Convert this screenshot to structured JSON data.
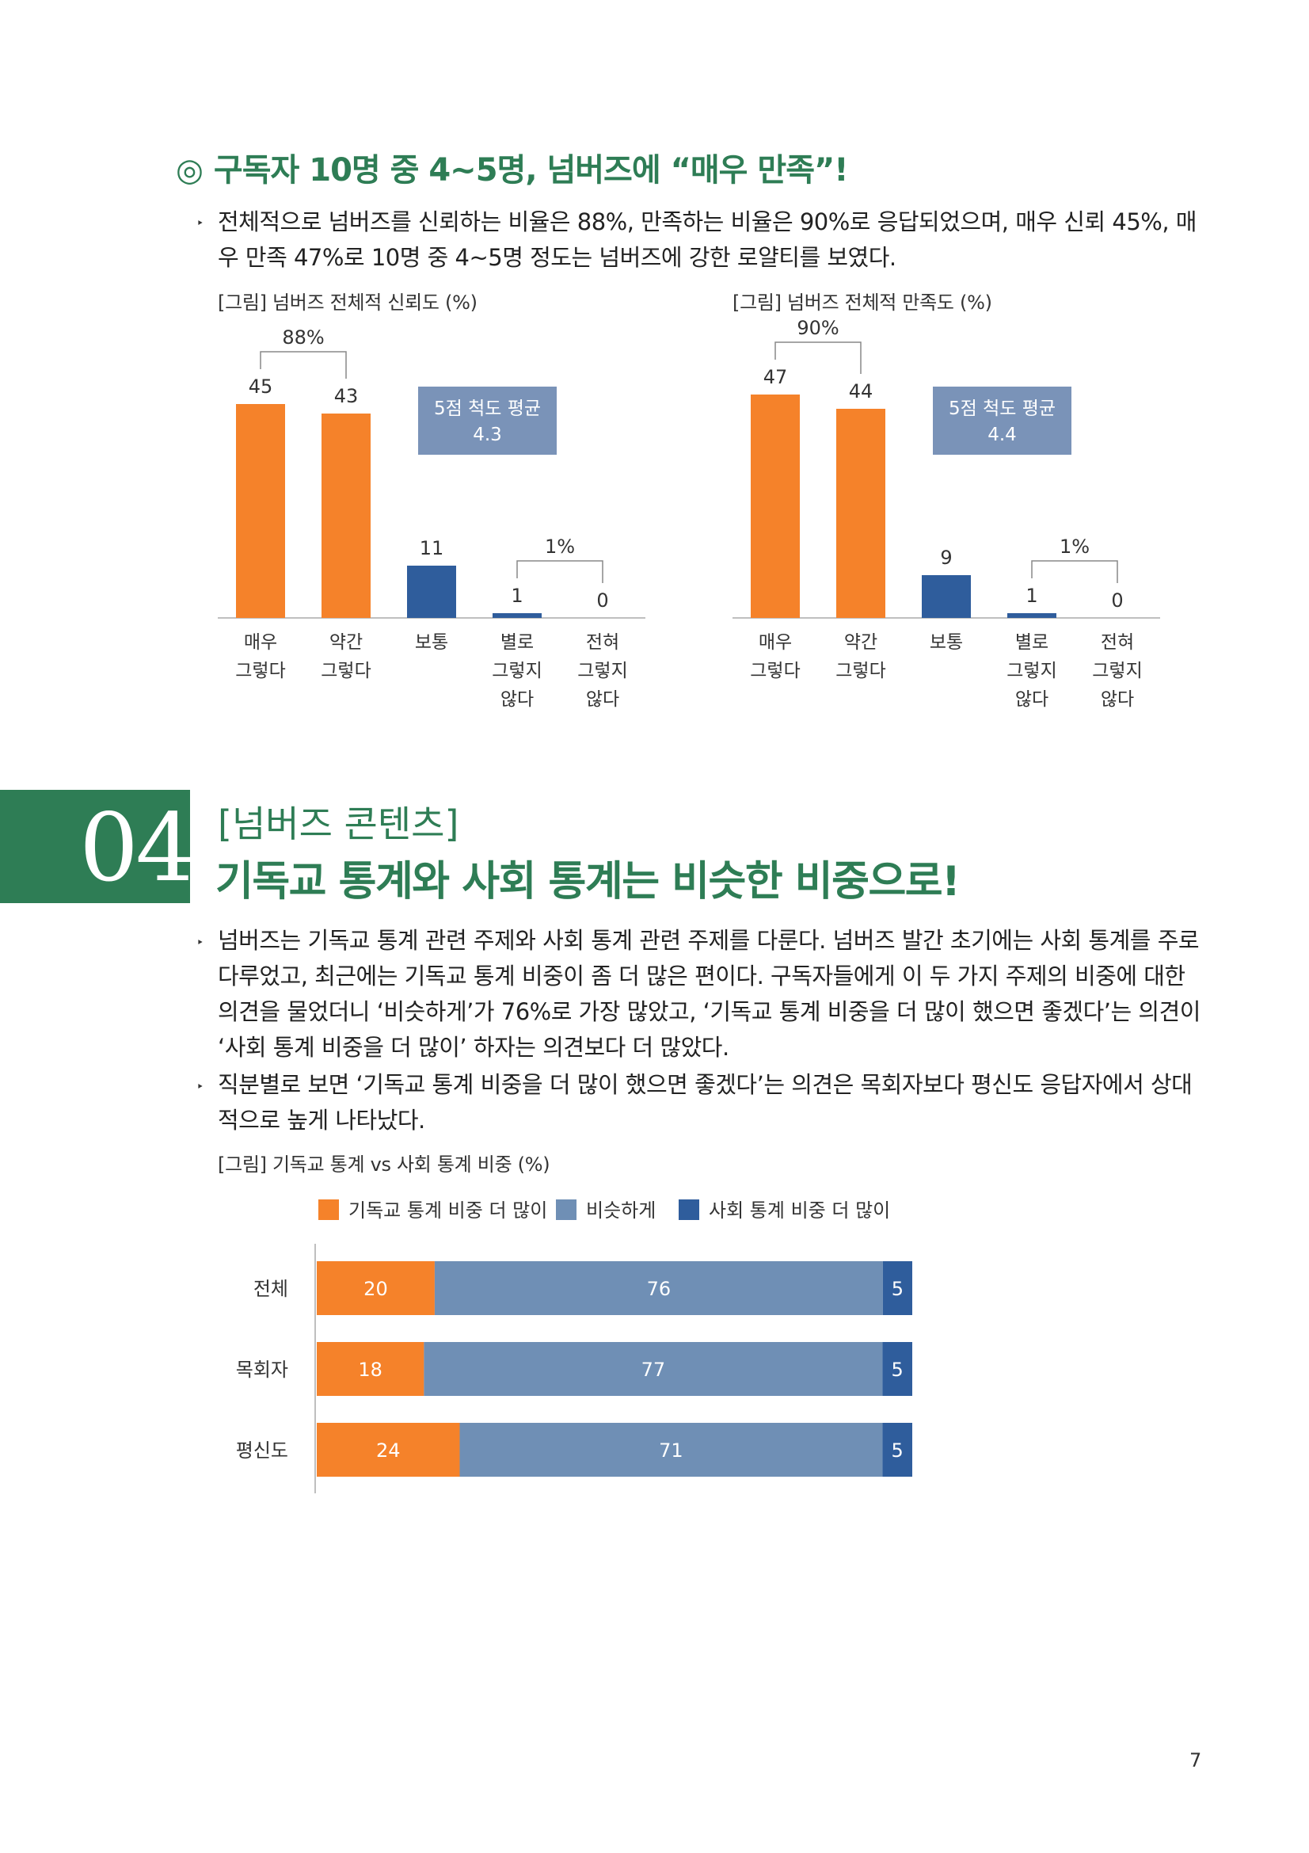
{
  "section1": {
    "heading_mark": "◎",
    "heading": "구독자 10명 중 4~5명, 넘버즈에 “매우 만족”!",
    "bullet": "‣",
    "para_line1": "전체적으로 넘버즈를 신뢰하는 비율은 88%, 만족하는 비율은 90%로 응답되었으며, 매우 신뢰 45%, 매",
    "para_line2": "우 만족 47%로 10명 중 4~5명 정도는 넘버즈에 강한 로얄티를 보였다."
  },
  "section2": {
    "number": "04",
    "subtitle": "[넘버즈 콘텐츠]",
    "title": "기독교 통계와 사회 통계는 비슷한 비중으로!",
    "bullet": "‣",
    "p1_l1": "넘버즈는 기독교 통계 관련 주제와 사회 통계 관련 주제를 다룬다. 넘버즈 발간 초기에는 사회 통계를 주로",
    "p1_l2": "다루었고, 최근에는 기독교 통계 비중이 좀 더 많은 편이다. 구독자들에게 이 두 가지 주제의 비중에 대한",
    "p1_l3": "의견을 물었더니 ‘비슷하게’가 76%로 가장 많았고, ‘기독교 통계 비중을 더 많이 했으면 좋겠다’는 의견이",
    "p1_l4": "‘사회 통계 비중을 더 많이’ 하자는 의견보다 더 많았다.",
    "p2_l1": "직분별로 보면 ‘기독교 통계 비중을 더 많이 했으면 좋겠다’는 의견은 목회자보다 평신도 응답자에서 상대",
    "p2_l2": "적으로 높게 나타났다."
  },
  "page_number": "7",
  "colors": {
    "green": "#2e7d55",
    "orange": "#f5822a",
    "gray_blue": "#6f8fb5",
    "blue": "#2f5d9c",
    "box": "#7a93b8"
  },
  "chart_data": [
    {
      "type": "bar",
      "title": "[그림] 넘버즈 전체적 신뢰도 (%)",
      "categories": [
        [
          "매우",
          "그렇다"
        ],
        [
          "약간",
          "그렇다"
        ],
        [
          "보통"
        ],
        [
          "별로",
          "그렇지",
          "않다"
        ],
        [
          "전혀",
          "그렇지",
          "않다"
        ]
      ],
      "values": [
        45,
        43,
        11,
        1,
        0
      ],
      "value_labels": [
        "45",
        "43",
        "11",
        "1",
        "0"
      ],
      "bar_colors": [
        "#f5822a",
        "#f5822a",
        "#2f5d9c",
        "#2f5d9c",
        "#2f5d9c"
      ],
      "group_labels": [
        {
          "text": "88%",
          "from": 0,
          "to": 1
        },
        {
          "text": "1%",
          "from": 3,
          "to": 4
        }
      ],
      "box": {
        "line1": "5점 척도 평균",
        "line2": "4.3"
      },
      "ylim": [
        0,
        50
      ]
    },
    {
      "type": "bar",
      "title": "[그림] 넘버즈 전체적 만족도 (%)",
      "categories": [
        [
          "매우",
          "그렇다"
        ],
        [
          "약간",
          "그렇다"
        ],
        [
          "보통"
        ],
        [
          "별로",
          "그렇지",
          "않다"
        ],
        [
          "전혀",
          "그렇지",
          "않다"
        ]
      ],
      "values": [
        47,
        44,
        9,
        1,
        0
      ],
      "value_labels": [
        "47",
        "44",
        "9",
        "1",
        "0"
      ],
      "bar_colors": [
        "#f5822a",
        "#f5822a",
        "#2f5d9c",
        "#2f5d9c",
        "#2f5d9c"
      ],
      "group_labels": [
        {
          "text": "90%",
          "from": 0,
          "to": 1
        },
        {
          "text": "1%",
          "from": 3,
          "to": 4
        }
      ],
      "box": {
        "line1": "5점 척도 평균",
        "line2": "4.4"
      },
      "ylim": [
        0,
        50
      ]
    },
    {
      "type": "bar",
      "orientation": "horizontal-stacked",
      "title": "[그림] 기독교 통계 vs 사회 통계 비중 (%)",
      "categories": [
        "전체",
        "목회자",
        "평신도"
      ],
      "series": [
        {
          "name": "기독교 통계 비중 더 많이",
          "color": "#f5822a",
          "values": [
            20,
            18,
            24
          ]
        },
        {
          "name": "비슷하게",
          "color": "#6f8fb5",
          "values": [
            76,
            77,
            71
          ]
        },
        {
          "name": "사회 통계 비중 더 많이",
          "color": "#2f5d9c",
          "values": [
            5,
            5,
            5
          ]
        }
      ],
      "legend": "top",
      "xlim": [
        0,
        101
      ]
    }
  ]
}
